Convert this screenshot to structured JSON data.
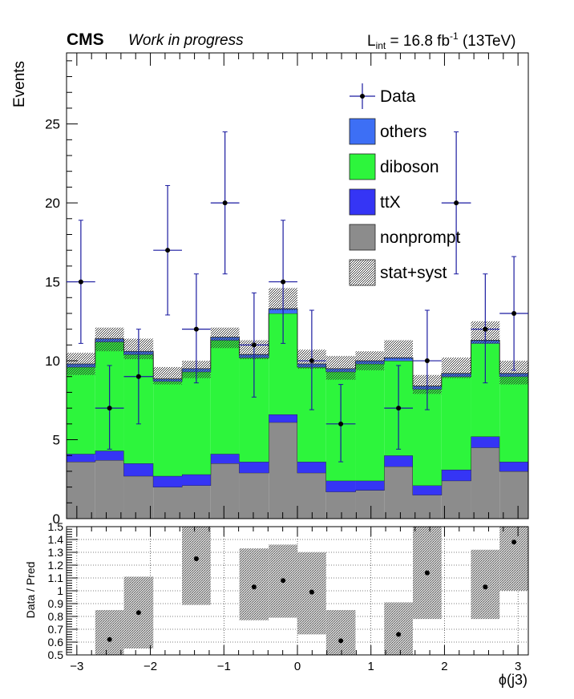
{
  "header": {
    "experiment": "CMS",
    "status": "Work in progress",
    "lumi_prefix": "L",
    "lumi_sub": "int",
    "lumi_value": " = 16.8 fb",
    "lumi_sup": "-1",
    "lumi_suffix": " (13TeV)"
  },
  "chart_data": [
    {
      "type": "bar",
      "subtype": "stacked-histogram",
      "ylabel": "Events",
      "ylim": [
        0,
        29.5
      ],
      "xlim": [
        -3.14,
        3.14
      ],
      "yticks": [
        0,
        5,
        10,
        15,
        20,
        25
      ],
      "bin_edges": [
        -3.14,
        -2.75,
        -2.36,
        -1.96,
        -1.57,
        -1.18,
        -0.79,
        -0.39,
        0,
        0.39,
        0.79,
        1.18,
        1.57,
        1.96,
        2.36,
        2.75,
        3.14
      ],
      "legend_position": "top-right",
      "series": [
        {
          "name": "nonprompt",
          "color": "#8c8c8c",
          "values": [
            3.6,
            3.7,
            2.7,
            2.0,
            2.1,
            3.5,
            2.9,
            6.1,
            2.9,
            1.7,
            1.8,
            3.3,
            1.5,
            2.4,
            4.5,
            3.0
          ]
        },
        {
          "name": "ttX",
          "color": "#3535f5",
          "values": [
            0.5,
            0.6,
            0.8,
            0.7,
            0.7,
            0.6,
            0.7,
            0.5,
            0.7,
            0.7,
            0.6,
            0.7,
            0.6,
            0.7,
            0.7,
            0.6
          ]
        },
        {
          "name": "diboson",
          "color": "#2df53c",
          "values": [
            5.5,
            6.9,
            6.9,
            6.0,
            6.5,
            7.2,
            6.6,
            6.4,
            6.0,
            6.9,
            7.4,
            6.0,
            6.1,
            5.9,
            5.9,
            5.4
          ]
        },
        {
          "name": "others",
          "color": "#3d6ff5",
          "values": [
            0.2,
            0.2,
            0.2,
            0.15,
            0.2,
            0.2,
            0.2,
            0.3,
            0.2,
            0.2,
            0.2,
            0.2,
            0.2,
            0.2,
            0.2,
            0.2
          ]
        }
      ],
      "syst_band": {
        "name": "stat+syst",
        "up": [
          10.5,
          12.1,
          11.4,
          9.6,
          10.0,
          12.1,
          11.3,
          14.6,
          10.7,
          10.3,
          10.6,
          11.3,
          9.1,
          10.2,
          12.5,
          10.0
        ],
        "down": [
          9.1,
          10.6,
          10.1,
          8.5,
          8.9,
          10.8,
          10.1,
          13.2,
          9.5,
          8.8,
          9.4,
          10.1,
          7.9,
          8.9,
          11.1,
          8.5
        ]
      },
      "data": {
        "name": "Data",
        "x": [
          -2.945,
          -2.555,
          -2.16,
          -1.765,
          -1.375,
          -0.985,
          -0.59,
          -0.195,
          0.195,
          0.59,
          0.985,
          1.375,
          1.765,
          2.16,
          2.555,
          2.945
        ],
        "y": [
          15,
          7,
          9,
          17,
          12,
          20,
          11,
          15,
          10,
          6,
          0,
          7,
          10,
          20,
          12,
          13
        ],
        "yerr_low": [
          3.9,
          2.6,
          3.0,
          4.1,
          3.4,
          4.5,
          3.3,
          3.9,
          3.1,
          2.4,
          0,
          2.6,
          3.1,
          4.5,
          3.4,
          3.6
        ],
        "yerr_high": [
          3.9,
          2.7,
          3.0,
          4.1,
          3.5,
          4.5,
          3.3,
          3.9,
          3.2,
          2.5,
          0,
          2.7,
          3.2,
          4.5,
          3.5,
          3.6
        ]
      },
      "legend": [
        {
          "label": "Data",
          "kind": "marker"
        },
        {
          "label": "others",
          "kind": "fill",
          "color": "#3d6ff5"
        },
        {
          "label": "diboson",
          "kind": "fill",
          "color": "#2df53c"
        },
        {
          "label": "ttX",
          "kind": "fill",
          "color": "#3535f5"
        },
        {
          "label": "nonprompt",
          "kind": "fill",
          "color": "#8c8c8c"
        },
        {
          "label": "stat+syst",
          "kind": "hatch"
        }
      ]
    },
    {
      "type": "scatter",
      "subtype": "ratio",
      "xlabel": "ϕ(j3)",
      "ylabel": "Data / Pred",
      "xlim": [
        -3.14,
        3.14
      ],
      "ylim": [
        0.5,
        1.5
      ],
      "yticks": [
        0.5,
        0.6,
        0.7,
        0.8,
        0.9,
        1,
        1.1,
        1.2,
        1.3,
        1.4,
        1.5
      ],
      "ytick_labels": [
        "0.5",
        "0.6",
        "0.7",
        "0.8",
        "0.9",
        "1",
        "1.1",
        "1.2",
        "1.3",
        "1.4",
        "1.5"
      ],
      "xticks": [
        -3,
        -2,
        -1,
        0,
        1,
        2,
        3
      ],
      "xtick_labels": [
        "−3",
        "−2",
        "−1",
        "0",
        "1",
        "2",
        "3"
      ],
      "grid": true,
      "bands": [
        {
          "x0": -2.75,
          "x1": -2.36,
          "low": 0.45,
          "high": 0.85
        },
        {
          "x0": -2.36,
          "x1": -1.96,
          "low": 0.55,
          "high": 1.11
        },
        {
          "x0": -1.57,
          "x1": -1.18,
          "low": 0.89,
          "high": 1.6
        },
        {
          "x0": -0.79,
          "x1": -0.39,
          "low": 0.77,
          "high": 1.33
        },
        {
          "x0": -0.39,
          "x1": 0,
          "low": 0.79,
          "high": 1.36
        },
        {
          "x0": 0,
          "x1": 0.39,
          "low": 0.66,
          "high": 1.3
        },
        {
          "x0": 0.39,
          "x1": 0.79,
          "low": 0.45,
          "high": 0.85
        },
        {
          "x0": 1.18,
          "x1": 1.57,
          "low": 0.41,
          "high": 0.91
        },
        {
          "x0": 1.57,
          "x1": 1.96,
          "low": 0.78,
          "high": 1.55
        },
        {
          "x0": 2.36,
          "x1": 2.75,
          "low": 0.78,
          "high": 1.32
        },
        {
          "x0": 2.75,
          "x1": 3.14,
          "low": 1.0,
          "high": 1.6
        }
      ],
      "points": {
        "x": [
          -2.555,
          -2.16,
          -1.375,
          -0.59,
          -0.195,
          0.195,
          0.59,
          1.375,
          1.765,
          2.555,
          2.945
        ],
        "y": [
          0.62,
          0.83,
          1.25,
          1.03,
          1.08,
          0.99,
          0.61,
          0.66,
          1.14,
          1.03,
          1.38
        ]
      }
    }
  ]
}
